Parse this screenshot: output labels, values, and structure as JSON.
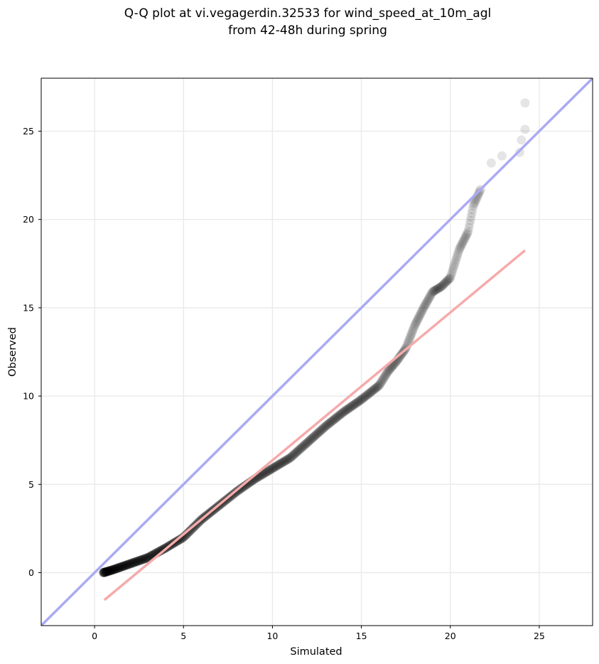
{
  "chart_data": {
    "type": "scatter",
    "title_line1": "Q-Q plot at vi.vegagerdin.32533 for wind_speed_at_10m_agl",
    "title_line2": "from 42-48h during spring",
    "xlabel": "Simulated",
    "ylabel": "Observed",
    "xlim": [
      -3.0,
      28.0
    ],
    "ylim": [
      -3.0,
      28.0
    ],
    "xticks": [
      0,
      5,
      10,
      15,
      20,
      25
    ],
    "yticks": [
      0,
      5,
      10,
      15,
      20,
      25
    ],
    "grid": true,
    "colors": {
      "points": "#000000",
      "identity_line": "#aaaaf3",
      "fit_line": "#f6aaaa",
      "grid": "#ebebeb",
      "axes": "#000000"
    },
    "reference_lines": [
      {
        "kind": "identity",
        "x": [
          -3.0,
          28.0
        ],
        "y": [
          -3.0,
          28.0
        ]
      },
      {
        "kind": "fit",
        "x": [
          0.55,
          24.2
        ],
        "y": [
          -1.55,
          18.25
        ]
      }
    ],
    "points_curve": [
      [
        0.5,
        0.0
      ],
      [
        1.0,
        0.15
      ],
      [
        2.0,
        0.5
      ],
      [
        3.0,
        0.85
      ],
      [
        4.0,
        1.4
      ],
      [
        5.0,
        2.0
      ],
      [
        6.0,
        3.0
      ],
      [
        7.0,
        3.8
      ],
      [
        8.0,
        4.6
      ],
      [
        9.0,
        5.3
      ],
      [
        10.0,
        5.9
      ],
      [
        11.0,
        6.5
      ],
      [
        12.0,
        7.4
      ],
      [
        13.0,
        8.3
      ],
      [
        14.0,
        9.1
      ],
      [
        15.0,
        9.8
      ],
      [
        16.0,
        10.6
      ],
      [
        16.5,
        11.4
      ],
      [
        17.0,
        12.0
      ],
      [
        17.5,
        12.7
      ],
      [
        18.0,
        14.0
      ],
      [
        18.5,
        15.0
      ],
      [
        19.0,
        15.9
      ],
      [
        19.5,
        16.2
      ],
      [
        20.0,
        16.7
      ],
      [
        20.5,
        18.3
      ],
      [
        21.0,
        19.3
      ],
      [
        21.3,
        20.8
      ],
      [
        21.7,
        21.7
      ]
    ],
    "outlier_points": [
      [
        22.3,
        23.2
      ],
      [
        22.9,
        23.6
      ],
      [
        23.9,
        23.8
      ],
      [
        24.0,
        24.5
      ],
      [
        24.2,
        25.1
      ],
      [
        24.2,
        26.6
      ]
    ]
  }
}
